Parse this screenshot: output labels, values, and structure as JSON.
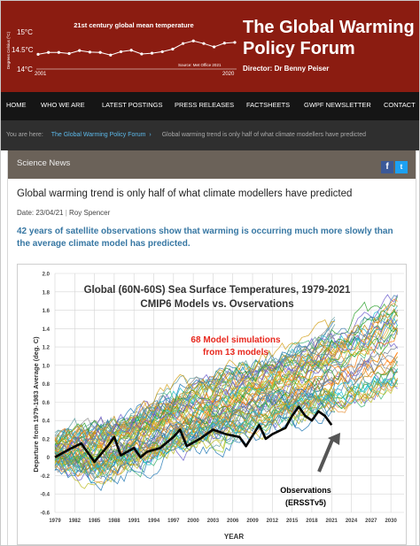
{
  "header": {
    "mini_chart": {
      "title": "21st century global mean temperature",
      "ylabel": "Degrees Celsius (ºC)",
      "yticks": [
        "15°C",
        "14.5°C",
        "14°C"
      ],
      "x_start": "2001",
      "x_end": "2020",
      "source": "Source: Met Office 2021"
    },
    "site_title_line1": "The Global Warming",
    "site_title_line2": "Policy Forum",
    "director": "Director: Dr Benny Peiser"
  },
  "nav": {
    "items": [
      "HOME",
      "WHO WE ARE",
      "LATEST POSTINGS",
      "PRESS RELEASES",
      "FACTSHEETS",
      "GWPF NEWSLETTER",
      "CONTACT"
    ]
  },
  "breadcrumb": {
    "prefix": "You are here:",
    "home_link": "The Global Warming Policy Forum",
    "separator": "›",
    "current": "Global warming trend is only half of what climate modellers have predicted"
  },
  "section": {
    "label": "Science News",
    "facebook_icon": "f",
    "twitter_icon": "t"
  },
  "article": {
    "title": "Global warming trend is only half of what climate modellers have predicted",
    "date": "Date: 23/04/21",
    "author": "Roy Spencer",
    "lede": "42 years of satellite observations show that warming is occurring much more slowly than the average climate model has predicted."
  },
  "figure": {
    "title_line1": "Global (60N-60S) Sea Surface Temperatures, 1979-2021",
    "title_line2": "CMIP6 Models vs. Ovservations",
    "ylabel": "Departure from 1979-1983 Average (deg. C)",
    "xlabel": "YEAR",
    "model_label_line1": "68 Model simulations",
    "model_label_line2": "from 13 models",
    "obs_label_line1": "Observations",
    "obs_label_line2": "(ERSSTv5)",
    "yticks": [
      "2.0",
      "1.8",
      "1.6",
      "1.4",
      "1.2",
      "1.0",
      "0.8",
      "0.6",
      "0.4",
      "0.2",
      "0",
      "-0.2",
      "-0.4",
      "-0.6"
    ],
    "xticks": [
      "1979",
      "1982",
      "1985",
      "1988",
      "1991",
      "1994",
      "1997",
      "2000",
      "2003",
      "2006",
      "2009",
      "2012",
      "2015",
      "2018",
      "2021",
      "2024",
      "2027",
      "2030"
    ]
  },
  "chart_data": [
    {
      "type": "line",
      "title": "21st century global mean temperature",
      "ylabel": "Degrees Celsius (ºC)",
      "ylim": [
        14,
        15
      ],
      "x": [
        2001,
        2002,
        2003,
        2004,
        2005,
        2006,
        2007,
        2008,
        2009,
        2010,
        2011,
        2012,
        2013,
        2014,
        2015,
        2016,
        2017,
        2018,
        2019,
        2020
      ],
      "series": [
        {
          "values": [
            14.42,
            14.47,
            14.47,
            14.44,
            14.52,
            14.48,
            14.47,
            14.4,
            14.49,
            14.53,
            14.43,
            14.45,
            14.49,
            14.56,
            14.71,
            14.78,
            14.71,
            14.62,
            14.72,
            14.74
          ]
        }
      ]
    },
    {
      "type": "line",
      "title": "Global (60N-60S) Sea Surface Temperatures, 1979-2021",
      "subtitle": "CMIP6 Models vs. Ovservations",
      "xlabel": "YEAR",
      "ylabel": "Departure from 1979-1983 Average (deg. C)",
      "xlim": [
        1979,
        2032
      ],
      "ylim": [
        -0.6,
        2.0
      ],
      "grid": true,
      "series": [
        {
          "name": "Observations (ERSSTv5)",
          "x": [
            1979,
            1981,
            1983,
            1985,
            1987,
            1988,
            1989,
            1991,
            1992,
            1993,
            1995,
            1997,
            1998,
            1999,
            2001,
            2003,
            2005,
            2007,
            2008,
            2010,
            2011,
            2012,
            2014,
            2015,
            2016,
            2017,
            2018,
            2019,
            2020,
            2021
          ],
          "y": [
            0.0,
            0.08,
            0.15,
            -0.05,
            0.12,
            0.22,
            0.02,
            0.1,
            0.0,
            0.06,
            0.1,
            0.22,
            0.3,
            0.12,
            0.2,
            0.3,
            0.25,
            0.22,
            0.12,
            0.35,
            0.2,
            0.25,
            0.32,
            0.45,
            0.55,
            0.45,
            0.4,
            0.5,
            0.45,
            0.35
          ]
        },
        {
          "name": "68 Model simulations from 13 models (ensemble range)",
          "x": [
            1979,
            1985,
            1991,
            1997,
            2003,
            2009,
            2015,
            2021,
            2027,
            2031
          ],
          "y_low": [
            -0.1,
            -0.2,
            -0.1,
            0.05,
            0.15,
            0.3,
            0.4,
            0.5,
            0.6,
            0.7
          ],
          "y_high": [
            0.2,
            0.3,
            0.45,
            0.7,
            0.85,
            1.0,
            1.15,
            1.4,
            1.6,
            1.75
          ]
        }
      ]
    }
  ],
  "colors": {
    "header_bg": "#8b1c11",
    "nav_bg": "#151515",
    "breadcrumb_bg": "#2f2f2f",
    "breadcrumb_link": "#5cb8e8",
    "news_bar": "#6b6259",
    "lede": "#3777a3",
    "model_label": "#e8281e",
    "observations": "#000000"
  }
}
